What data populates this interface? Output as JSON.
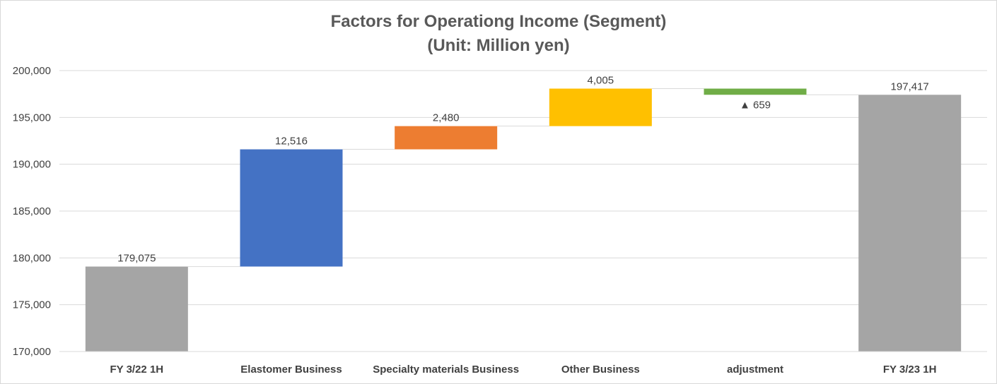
{
  "chart_data": {
    "type": "waterfall",
    "title": "Factors for Operationg Income (Segment)",
    "subtitle": "(Unit: Million yen)",
    "ylim": [
      170000,
      200000
    ],
    "y_ticks": [
      170000,
      175000,
      180000,
      185000,
      190000,
      195000,
      200000
    ],
    "y_tick_labels": [
      "170,000",
      "175,000",
      "180,000",
      "185,000",
      "190,000",
      "195,000",
      "200,000"
    ],
    "grid": true,
    "categories": [
      "FY 3/22 1H",
      "Elastomer Business",
      "Specialty materials Business",
      "Other Business",
      "adjustment",
      "FY 3/23 1H"
    ],
    "bars": [
      {
        "kind": "total",
        "base": 170000,
        "value": 179075,
        "label": "179,075",
        "color": "#a5a5a5"
      },
      {
        "kind": "delta",
        "base": 179075,
        "value": 191591,
        "label": "12,516",
        "color": "#4472c4"
      },
      {
        "kind": "delta",
        "base": 191591,
        "value": 194071,
        "label": "2,480",
        "color": "#ed7d31"
      },
      {
        "kind": "delta",
        "base": 194071,
        "value": 198076,
        "label": "4,005",
        "color": "#ffc000"
      },
      {
        "kind": "delta",
        "base": 198076,
        "value": 197417,
        "label": "▲ 659",
        "color": "#70ad47"
      },
      {
        "kind": "total",
        "base": 170000,
        "value": 197417,
        "label": "197,417",
        "color": "#a5a5a5"
      }
    ]
  }
}
